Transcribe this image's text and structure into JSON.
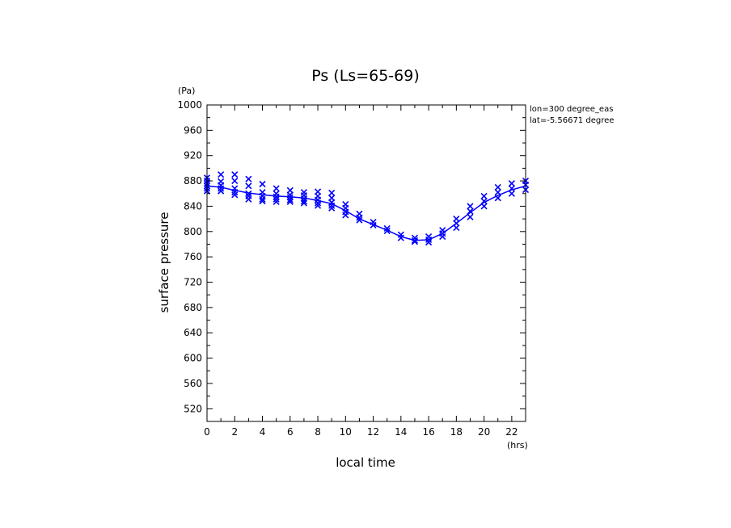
{
  "chart_data": {
    "type": "line",
    "title": "Ps (Ls=65-69)",
    "xlabel": "local time",
    "ylabel": "surface pressure",
    "x_unit": "(hrs)",
    "y_unit": "(Pa)",
    "annotations": [
      "lon=300 degree_eas",
      "lat=-5.56671 degree"
    ],
    "xlim": [
      0,
      23
    ],
    "ylim": [
      500,
      1000
    ],
    "x_ticks": [
      0,
      2,
      4,
      6,
      8,
      10,
      12,
      14,
      16,
      18,
      20,
      22
    ],
    "y_ticks": [
      520,
      560,
      600,
      640,
      680,
      720,
      760,
      800,
      840,
      880,
      920,
      960,
      1000
    ],
    "grid": false,
    "colors": {
      "series": "#0000ff",
      "axis": "#000000"
    },
    "series": [
      {
        "type": "line",
        "x": [
          0,
          1,
          2,
          3,
          4,
          5,
          6,
          7,
          8,
          9,
          10,
          11,
          12,
          13,
          14,
          15,
          16,
          17,
          18,
          19,
          20,
          21,
          22,
          23
        ],
        "values": [
          872,
          870,
          865,
          861,
          858,
          856,
          855,
          853,
          849,
          844,
          833,
          820,
          811,
          802,
          792,
          786,
          787,
          797,
          813,
          830,
          846,
          857,
          866,
          872
        ]
      },
      {
        "type": "scatter",
        "marker": "x",
        "points": [
          [
            0,
            885
          ],
          [
            0,
            880
          ],
          [
            0,
            876
          ],
          [
            0,
            872
          ],
          [
            0,
            868
          ],
          [
            0,
            864
          ],
          [
            1,
            890
          ],
          [
            1,
            879
          ],
          [
            1,
            873
          ],
          [
            1,
            868
          ],
          [
            1,
            864
          ],
          [
            2,
            890
          ],
          [
            2,
            880
          ],
          [
            2,
            868
          ],
          [
            2,
            862
          ],
          [
            2,
            858
          ],
          [
            3,
            883
          ],
          [
            3,
            872
          ],
          [
            3,
            860
          ],
          [
            3,
            856
          ],
          [
            3,
            851
          ],
          [
            4,
            875
          ],
          [
            4,
            862
          ],
          [
            4,
            856
          ],
          [
            4,
            851
          ],
          [
            4,
            848
          ],
          [
            5,
            868
          ],
          [
            5,
            860
          ],
          [
            5,
            855
          ],
          [
            5,
            851
          ],
          [
            5,
            847
          ],
          [
            6,
            865
          ],
          [
            6,
            858
          ],
          [
            6,
            854
          ],
          [
            6,
            850
          ],
          [
            6,
            847
          ],
          [
            7,
            862
          ],
          [
            7,
            857
          ],
          [
            7,
            852
          ],
          [
            7,
            848
          ],
          [
            7,
            845
          ],
          [
            8,
            863
          ],
          [
            8,
            856
          ],
          [
            8,
            850
          ],
          [
            8,
            845
          ],
          [
            8,
            841
          ],
          [
            9,
            861
          ],
          [
            9,
            853
          ],
          [
            9,
            846
          ],
          [
            9,
            841
          ],
          [
            9,
            837
          ],
          [
            10,
            843
          ],
          [
            10,
            837
          ],
          [
            10,
            831
          ],
          [
            10,
            826
          ],
          [
            11,
            828
          ],
          [
            11,
            822
          ],
          [
            11,
            818
          ],
          [
            12,
            815
          ],
          [
            12,
            810
          ],
          [
            13,
            805
          ],
          [
            13,
            801
          ],
          [
            14,
            795
          ],
          [
            14,
            790
          ],
          [
            15,
            790
          ],
          [
            15,
            786
          ],
          [
            15,
            784
          ],
          [
            16,
            792
          ],
          [
            16,
            787
          ],
          [
            16,
            783
          ],
          [
            17,
            802
          ],
          [
            17,
            797
          ],
          [
            17,
            792
          ],
          [
            18,
            820
          ],
          [
            18,
            813
          ],
          [
            18,
            806
          ],
          [
            19,
            840
          ],
          [
            19,
            832
          ],
          [
            19,
            823
          ],
          [
            20,
            856
          ],
          [
            20,
            848
          ],
          [
            20,
            840
          ],
          [
            21,
            870
          ],
          [
            21,
            862
          ],
          [
            21,
            853
          ],
          [
            22,
            876
          ],
          [
            22,
            868
          ],
          [
            22,
            860
          ],
          [
            23,
            880
          ],
          [
            23,
            874
          ],
          [
            23,
            866
          ]
        ]
      }
    ]
  }
}
